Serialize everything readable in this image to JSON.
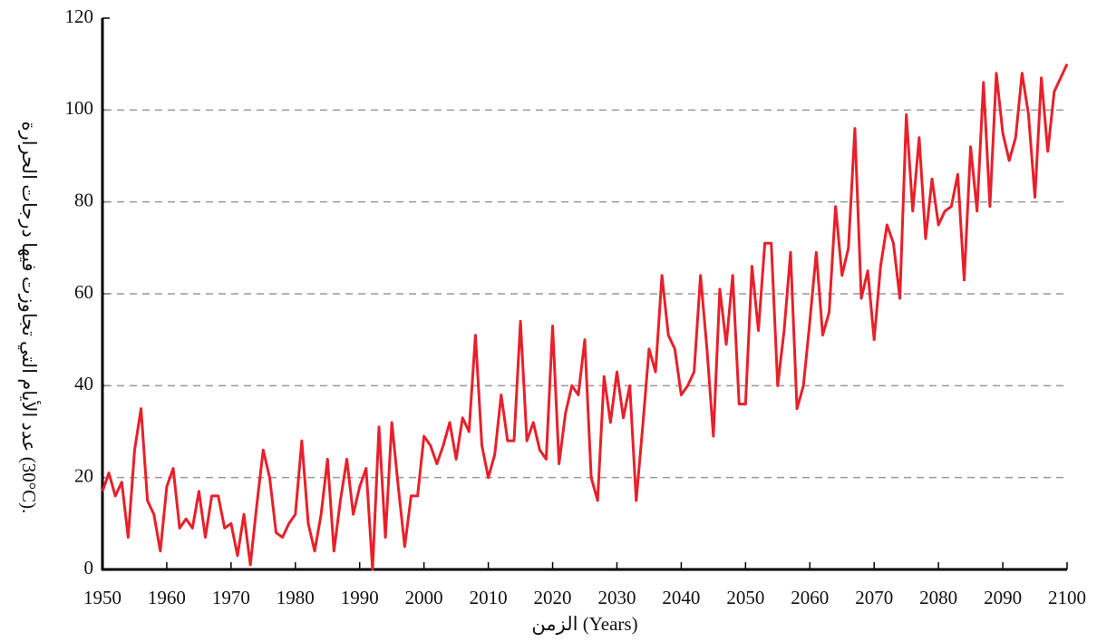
{
  "chart_data": {
    "type": "line",
    "ylabel": "عدد الأيام التي تجاوزت فيها درجات الحرارة (30°C).",
    "xlabel": "الزمن (Years)",
    "x": [
      1950,
      1951,
      1952,
      1953,
      1954,
      1955,
      1956,
      1957,
      1958,
      1959,
      1960,
      1961,
      1962,
      1963,
      1964,
      1965,
      1966,
      1967,
      1968,
      1969,
      1970,
      1971,
      1972,
      1973,
      1974,
      1975,
      1976,
      1977,
      1978,
      1979,
      1980,
      1981,
      1982,
      1983,
      1984,
      1985,
      1986,
      1987,
      1988,
      1989,
      1990,
      1991,
      1992,
      1993,
      1994,
      1995,
      1996,
      1997,
      1998,
      1999,
      2000,
      2001,
      2002,
      2003,
      2004,
      2005,
      2006,
      2007,
      2008,
      2009,
      2010,
      2011,
      2012,
      2013,
      2014,
      2015,
      2016,
      2017,
      2018,
      2019,
      2020,
      2021,
      2022,
      2023,
      2024,
      2025,
      2026,
      2027,
      2028,
      2029,
      2030,
      2031,
      2032,
      2033,
      2034,
      2035,
      2036,
      2037,
      2038,
      2039,
      2040,
      2041,
      2042,
      2043,
      2044,
      2045,
      2046,
      2047,
      2048,
      2049,
      2050,
      2051,
      2052,
      2053,
      2054,
      2055,
      2056,
      2057,
      2058,
      2059,
      2060,
      2061,
      2062,
      2063,
      2064,
      2065,
      2066,
      2067,
      2068,
      2069,
      2070,
      2071,
      2072,
      2073,
      2074,
      2075,
      2076,
      2077,
      2078,
      2079,
      2080,
      2081,
      2082,
      2083,
      2084,
      2085,
      2086,
      2087,
      2088,
      2089,
      2090,
      2091,
      2092,
      2093,
      2094,
      2095,
      2096,
      2097,
      2098,
      2099,
      2100
    ],
    "series": [
      {
        "color": "#e8202a",
        "values": [
          17,
          21,
          16,
          19,
          7,
          26,
          35,
          15,
          12,
          4,
          18,
          22,
          9,
          11,
          9,
          17,
          7,
          16,
          16,
          9,
          10,
          3,
          12,
          1,
          14,
          26,
          20,
          8,
          7,
          10,
          12,
          28,
          10,
          4,
          12,
          24,
          4,
          15,
          24,
          12,
          18,
          22,
          0,
          31,
          7,
          32,
          18,
          5,
          16,
          16,
          29,
          27,
          23,
          27,
          32,
          24,
          33,
          30,
          51,
          27,
          20,
          25,
          38,
          28,
          28,
          54,
          28,
          32,
          26,
          24,
          53,
          23,
          34,
          40,
          38,
          50,
          20,
          15,
          42,
          32,
          43,
          33,
          40,
          15,
          31,
          48,
          43,
          64,
          51,
          48,
          38,
          40,
          43,
          64,
          48,
          29,
          61,
          49,
          64,
          36,
          36,
          66,
          52,
          71,
          71,
          40,
          52,
          69,
          35,
          40,
          54,
          69,
          51,
          56,
          79,
          64,
          70,
          96,
          59,
          65,
          50,
          66,
          75,
          71,
          59,
          99,
          78,
          94,
          72,
          85,
          75,
          78,
          79,
          86,
          63,
          92,
          78,
          106,
          79,
          108,
          95,
          89,
          94,
          108,
          99,
          81,
          107,
          91,
          104,
          107,
          110
        ]
      }
    ],
    "xlim": [
      1950,
      2100
    ],
    "xticks": [
      1950,
      1960,
      1970,
      1980,
      1990,
      2000,
      2010,
      2020,
      2030,
      2040,
      2050,
      2060,
      2070,
      2080,
      2090,
      2100
    ],
    "ylim": [
      0,
      120
    ],
    "yticks": [
      0,
      20,
      40,
      60,
      80,
      100,
      120
    ],
    "grid": true
  }
}
